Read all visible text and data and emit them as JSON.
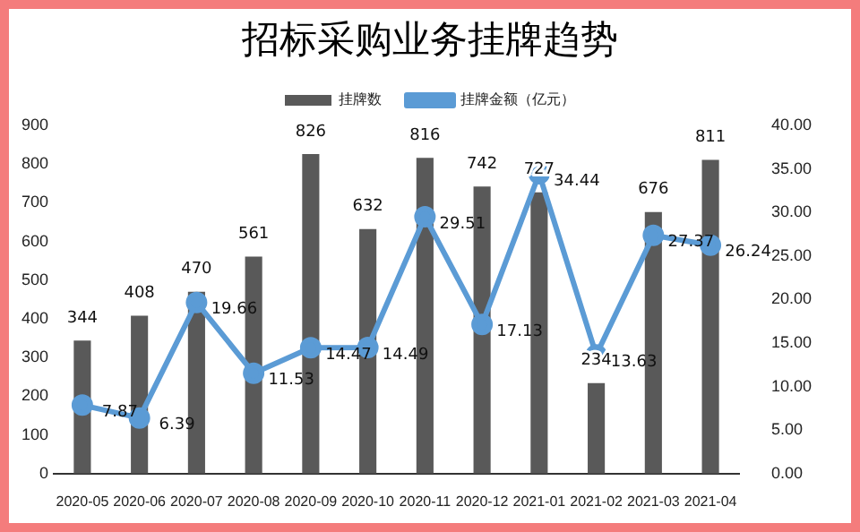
{
  "chart_data": {
    "type": "bar",
    "title": "招标采购业务挂牌趋势",
    "categories": [
      "2020-05",
      "2020-06",
      "2020-07",
      "2020-08",
      "2020-09",
      "2020-10",
      "2020-11",
      "2020-12",
      "2021-01",
      "2021-02",
      "2021-03",
      "2021-04"
    ],
    "series": [
      {
        "name": "挂牌数",
        "color": "#595959",
        "values": [
          344,
          408,
          470,
          561,
          826,
          632,
          816,
          742,
          727,
          234,
          676,
          811
        ]
      },
      {
        "name": "挂牌金额（亿元）",
        "type": "line",
        "axis": "y2",
        "color": "#5b9bd5",
        "values": [
          7.87,
          6.39,
          19.66,
          11.53,
          14.47,
          14.49,
          29.51,
          17.13,
          34.44,
          13.63,
          27.37,
          26.24
        ]
      }
    ],
    "ylim": [
      0,
      900
    ],
    "yticks": [
      0,
      100,
      200,
      300,
      400,
      500,
      600,
      700,
      800,
      900
    ],
    "y2lim": [
      0,
      40
    ],
    "y2ticks": [
      {
        "value": 0,
        "label": "0.00"
      },
      {
        "value": 5,
        "label": "5.00"
      },
      {
        "value": 10,
        "label": "10.00"
      },
      {
        "value": 15,
        "label": "15.00"
      },
      {
        "value": 20,
        "label": "20.00"
      },
      {
        "value": 25,
        "label": "25.00"
      },
      {
        "value": 30,
        "label": "30.00"
      },
      {
        "value": 35,
        "label": "35.00"
      },
      {
        "value": 40,
        "label": "40.00"
      }
    ],
    "grid": false,
    "legend": "top",
    "marker": "circle",
    "line_style": "solid",
    "data_labels": true
  }
}
